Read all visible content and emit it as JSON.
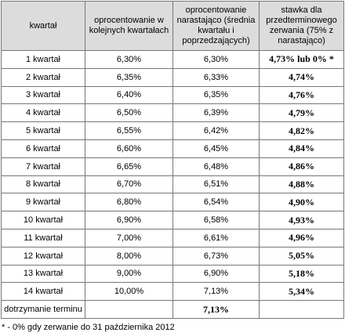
{
  "table": {
    "header": [
      "kwartał",
      "oprocentowanie w kolejnych kwartałach",
      "oprocentowanie narastająco (średnia kwartału i poprzedzających)",
      "stawka dla przedterminowego zerwania (75% z narastająco)"
    ],
    "rows": [
      [
        "1 kwartał",
        "6,30%",
        "6,30%",
        "4,73% lub 0% *"
      ],
      [
        "2 kwartał",
        "6,35%",
        "6,33%",
        "4,74%"
      ],
      [
        "3 kwartał",
        "6,40%",
        "6,35%",
        "4,76%"
      ],
      [
        "4 kwartał",
        "6,50%",
        "6,39%",
        "4,79%"
      ],
      [
        "5 kwartał",
        "6,55%",
        "6,42%",
        "4,82%"
      ],
      [
        "6 kwartał",
        "6,60%",
        "6,45%",
        "4,84%"
      ],
      [
        "7 kwartał",
        "6,65%",
        "6,48%",
        "4,86%"
      ],
      [
        "8 kwartał",
        "6,70%",
        "6,51%",
        "4,88%"
      ],
      [
        "9 kwartał",
        "6,80%",
        "6,54%",
        "4,90%"
      ],
      [
        "10 kwartał",
        "6,90%",
        "6,58%",
        "4,93%"
      ],
      [
        "11 kwartał",
        "7,00%",
        "6,61%",
        "4,96%"
      ],
      [
        "12 kwartał",
        "8,00%",
        "6,73%",
        "5,05%"
      ],
      [
        "13 kwartał",
        "9,00%",
        "6,90%",
        "5,18%"
      ],
      [
        "14 kwartał",
        "10,00%",
        "7,13%",
        "5,34%"
      ]
    ],
    "final_row": {
      "label": "dotrzymanie terminu",
      "value": "7,13%"
    }
  },
  "footnote": "* - 0% gdy zerwanie do 31 października 2012"
}
